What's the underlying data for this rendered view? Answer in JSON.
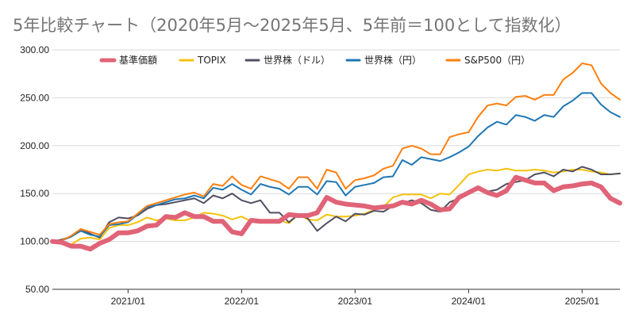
{
  "chart_data": {
    "type": "line",
    "title": "5年比較チャート（2020年5月〜2025年5月、5年前＝100として指数化）",
    "xlabel": "",
    "ylabel": "",
    "ylim": [
      50,
      300
    ],
    "yticks": [
      "50.00",
      "100.00",
      "150.00",
      "200.00",
      "250.00",
      "300.00"
    ],
    "xticks": [
      "2021/01",
      "2022/01",
      "2023/01",
      "2024/01",
      "2025/01"
    ],
    "grid": true,
    "legend_position": "top",
    "x": [
      "2020/05",
      "2020/06",
      "2020/07",
      "2020/08",
      "2020/09",
      "2020/10",
      "2020/11",
      "2020/12",
      "2021/01",
      "2021/02",
      "2021/03",
      "2021/04",
      "2021/05",
      "2021/06",
      "2021/07",
      "2021/08",
      "2021/09",
      "2021/10",
      "2021/11",
      "2021/12",
      "2022/01",
      "2022/02",
      "2022/03",
      "2022/04",
      "2022/05",
      "2022/06",
      "2022/07",
      "2022/08",
      "2022/09",
      "2022/10",
      "2022/11",
      "2022/12",
      "2023/01",
      "2023/02",
      "2023/03",
      "2023/04",
      "2023/05",
      "2023/06",
      "2023/07",
      "2023/08",
      "2023/09",
      "2023/10",
      "2023/11",
      "2023/12",
      "2024/01",
      "2024/02",
      "2024/03",
      "2024/04",
      "2024/05",
      "2024/06",
      "2024/07",
      "2024/08",
      "2024/09",
      "2024/10",
      "2024/11",
      "2024/12",
      "2025/01",
      "2025/02",
      "2025/03",
      "2025/04",
      "2025/05"
    ],
    "series": [
      {
        "name": "基準価額",
        "color": "#e06377",
        "width": 6,
        "values": [
          100,
          99,
          95,
          95,
          92,
          98,
          102,
          109,
          109,
          111,
          116,
          117,
          126,
          125,
          130,
          126,
          126,
          121,
          121,
          110,
          108,
          122,
          121,
          121,
          121,
          128,
          127,
          127,
          130,
          146,
          141,
          139,
          138,
          137,
          135,
          136,
          137,
          141,
          139,
          143,
          139,
          133,
          134,
          146,
          151,
          156,
          151,
          148,
          153,
          167,
          164,
          161,
          161,
          153,
          157,
          158,
          160,
          161,
          157,
          145,
          140
        ]
      },
      {
        "name": "TOPIX",
        "color": "#f4c20d",
        "width": 2,
        "values": [
          100,
          100,
          97,
          103,
          104,
          102,
          114,
          117,
          117,
          120,
          125,
          122,
          124,
          122,
          122,
          125,
          130,
          129,
          127,
          123,
          126,
          121,
          121,
          121,
          122,
          119,
          128,
          123,
          122,
          128,
          126,
          126,
          127,
          129,
          133,
          136,
          146,
          149,
          149,
          149,
          145,
          150,
          149,
          159,
          170,
          173,
          175,
          174,
          176,
          174,
          174,
          175,
          174,
          172,
          173,
          175,
          175,
          173,
          172,
          170,
          171
        ]
      },
      {
        "name": "世界株（ドル）",
        "color": "#514f63",
        "width": 2,
        "values": [
          100,
          102,
          105,
          113,
          108,
          104,
          120,
          125,
          124,
          127,
          134,
          138,
          139,
          141,
          143,
          145,
          140,
          148,
          145,
          150,
          143,
          140,
          143,
          130,
          130,
          120,
          128,
          124,
          111,
          119,
          126,
          121,
          129,
          128,
          132,
          131,
          137,
          140,
          143,
          140,
          133,
          131,
          141,
          145,
          150,
          154,
          152,
          154,
          160,
          162,
          164,
          170,
          172,
          168,
          175,
          173,
          178,
          175,
          170,
          170,
          171
        ]
      },
      {
        "name": "世界株（円）",
        "color": "#1f77b4",
        "width": 2,
        "values": [
          100,
          101,
          105,
          111,
          107,
          105,
          117,
          118,
          120,
          128,
          136,
          138,
          141,
          144,
          145,
          148,
          145,
          156,
          154,
          160,
          154,
          149,
          160,
          157,
          155,
          149,
          157,
          157,
          149,
          163,
          162,
          148,
          157,
          159,
          161,
          167,
          168,
          185,
          180,
          188,
          186,
          184,
          188,
          193,
          199,
          210,
          219,
          225,
          222,
          232,
          230,
          226,
          232,
          230,
          241,
          247,
          255,
          255,
          243,
          235,
          230
        ]
      },
      {
        "name": "S&P500（円）",
        "color": "#ff7f0e",
        "width": 2,
        "values": [
          100,
          101,
          106,
          113,
          110,
          107,
          118,
          120,
          121,
          129,
          137,
          140,
          143,
          146,
          149,
          151,
          147,
          160,
          158,
          168,
          159,
          155,
          168,
          165,
          162,
          155,
          167,
          167,
          155,
          175,
          172,
          155,
          164,
          166,
          169,
          176,
          179,
          197,
          200,
          197,
          191,
          191,
          209,
          212,
          214,
          230,
          242,
          244,
          242,
          251,
          252,
          248,
          253,
          253,
          269,
          276,
          286,
          284,
          265,
          255,
          248
        ]
      }
    ]
  }
}
